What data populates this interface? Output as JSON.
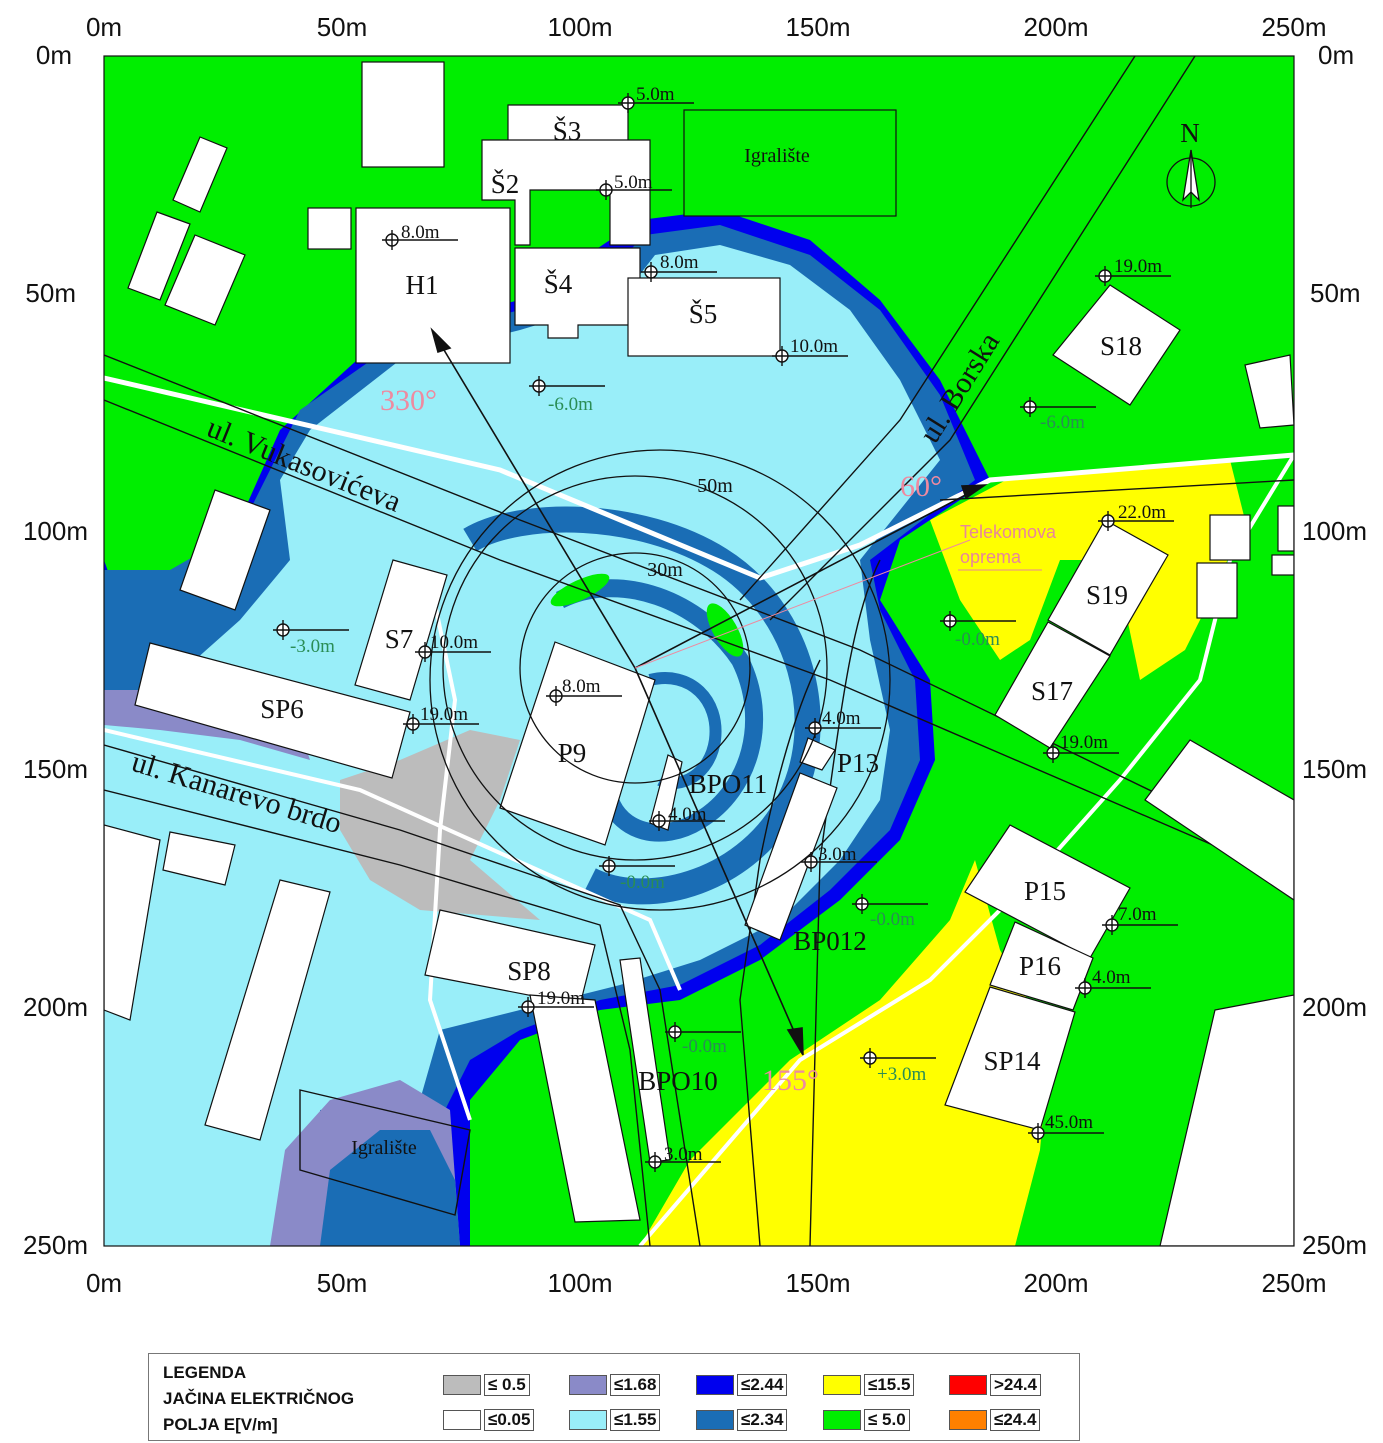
{
  "axes": {
    "top_ticks": [
      "0m",
      "50m",
      "100m",
      "150m",
      "200m",
      "250m"
    ],
    "bottom_ticks": [
      "0m",
      "50m",
      "100m",
      "150m",
      "200m",
      "250m"
    ],
    "left_ticks": [
      "0m",
      "50m",
      "100m",
      "150m",
      "200m",
      "250m"
    ],
    "right_ticks": [
      "0m",
      "50m",
      "100m",
      "150m",
      "200m",
      "250m"
    ]
  },
  "colors": {
    "green": "#00ee00",
    "light_cyan": "#99eef9",
    "steel_blue": "#1a6db5",
    "deep_blue": "#0000ee",
    "lavender": "#8a8ac8",
    "gray": "#bcbcbc",
    "yellow": "#ffff00",
    "white": "#ffffff",
    "pink": "#ee8aa0"
  },
  "north": {
    "label": "N"
  },
  "buildings": {
    "s3": "Š3",
    "s2": "Š2",
    "s4": "Š4",
    "s5": "Š5",
    "h1": "H1",
    "s18": "S18",
    "s19": "S19",
    "s17": "S17",
    "s7": "S7",
    "sp6": "SP6",
    "p9": "P9",
    "p13": "P13",
    "bpo11": "BPO11",
    "bpo12": "BP012",
    "p15": "P15",
    "p16": "P16",
    "sp14": "SP14",
    "sp8": "SP8",
    "bpo10": "BPO10"
  },
  "places": {
    "playground_top": "Igralište",
    "playground_bottom": "Igralište",
    "telecom_line1": "Telekomova",
    "telecom_line2": "oprema"
  },
  "streets": {
    "vukasoviceva": "ul. Vukasovićeva",
    "kanarevo": "ul. Kanarevo brdo",
    "borska": "ul. Borska"
  },
  "rings": {
    "r50": "50m",
    "r30": "30m"
  },
  "azimuths": {
    "a330": "330°",
    "a60": "60°",
    "a155": "155°"
  },
  "heights": [
    "5.0m",
    "5.0m",
    "8.0m",
    "8.0m",
    "10.0m",
    "-6.0m",
    "19.0m",
    "-6.0m",
    "22.0m",
    "-3.0m",
    "10.0m",
    "8.0m",
    "19.0m",
    "4.0m",
    "19.0m",
    "-0.0m",
    "4.0m",
    "-0.0m",
    "3.0m",
    "-0.0m",
    "7.0m",
    "4.0m",
    "19.0m",
    "-0.0m",
    "+3.0m",
    "45.0m",
    "3.0m"
  ],
  "legend": {
    "title_line1": "LEGENDA",
    "title_line2": "JAČINA ELEKTRIČNOG",
    "title_line3": "POLJA E[V/m]",
    "items": [
      {
        "label": "≤ 0.5",
        "color": "#bcbcbc"
      },
      {
        "label": "≤1.68",
        "color": "#8a8ac8"
      },
      {
        "label": "≤2.44",
        "color": "#0000ee"
      },
      {
        "label": "≤15.5",
        "color": "#ffff00"
      },
      {
        "label": ">24.4",
        "color": "#ff0000"
      },
      {
        "label": "≤0.05",
        "color": "#ffffff"
      },
      {
        "label": "≤1.55",
        "color": "#99eef9"
      },
      {
        "label": "≤2.34",
        "color": "#1a6db5"
      },
      {
        "label": "≤ 5.0",
        "color": "#00ee00"
      },
      {
        "label": "≤24.4",
        "color": "#ff8000"
      }
    ]
  }
}
